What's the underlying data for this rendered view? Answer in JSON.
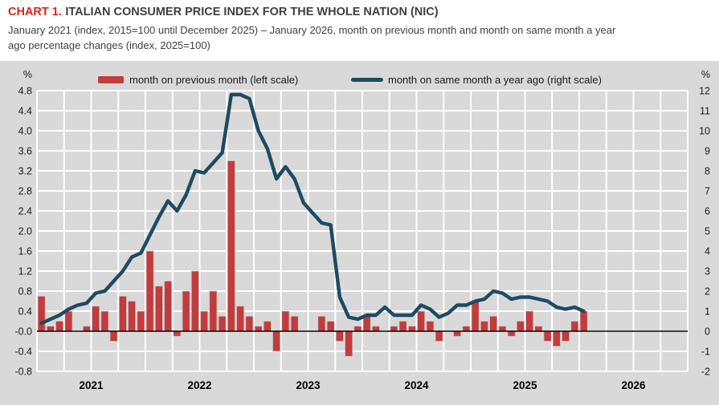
{
  "header": {
    "label": "CHART 1.",
    "title": "ITALIAN CONSUMER PRICE INDEX FOR THE WHOLE NATION (NIC)",
    "subtitle": "January 2021 (index, 2015=100 until December 2025) – January 2026, month on previous month and month on same month a year ago percentage changes (index, 2025=100)"
  },
  "colors": {
    "bar_red": "#c23b3d",
    "bar_stroke": "#c6c6c6",
    "line_navy": "#1d4a63",
    "panel_gray": "#d9d9d9",
    "grid_white": "#ffffff",
    "zero_line": "#000000",
    "tick_text": "#1c1c1c",
    "title_red": "#d9251c",
    "title_gray": "#3f3f3f"
  },
  "chart_data": {
    "type": "bar+line",
    "title": "Italian consumer price index for the whole nation (NIC)",
    "x_start": "2021-01",
    "x_end": "2026-01",
    "n_points": 61,
    "x_axis_year_labels": [
      "2021",
      "2022",
      "2023",
      "2024",
      "2025",
      "2026"
    ],
    "x_domain_months": 72,
    "grid": {
      "vertical": "quarterly",
      "horizontal_step_left": 0.4,
      "gridlines": "on"
    },
    "left_axis": {
      "unit": "%",
      "min": -0.8,
      "max": 4.8,
      "step": 0.4
    },
    "right_axis": {
      "unit": "%",
      "min": -2,
      "max": 12,
      "step": 1
    },
    "legend_position": "top",
    "series": [
      {
        "name": "month on previous month (left scale)",
        "type": "bar",
        "axis": "left",
        "color": "#c23b3d",
        "values": [
          0.7,
          0.1,
          0.2,
          0.4,
          0.0,
          0.1,
          0.5,
          0.4,
          -0.2,
          0.7,
          0.6,
          0.4,
          1.6,
          0.9,
          1.0,
          -0.1,
          0.8,
          1.2,
          0.4,
          0.8,
          0.3,
          3.4,
          0.5,
          0.3,
          0.1,
          0.2,
          -0.4,
          0.4,
          0.3,
          0.0,
          0.0,
          0.3,
          0.2,
          -0.2,
          -0.5,
          0.1,
          0.3,
          0.1,
          0.0,
          0.1,
          0.2,
          0.1,
          0.4,
          0.2,
          -0.2,
          0.0,
          -0.1,
          0.1,
          0.6,
          0.2,
          0.3,
          0.1,
          -0.1,
          0.2,
          0.4,
          0.1,
          -0.2,
          -0.3,
          -0.2,
          0.2,
          0.4
        ]
      },
      {
        "name": "month on same month a year ago (right scale)",
        "type": "line",
        "axis": "right",
        "color": "#1d4a63",
        "values": [
          0.4,
          0.6,
          0.8,
          1.1,
          1.3,
          1.4,
          1.9,
          2.0,
          2.5,
          3.0,
          3.7,
          3.9,
          4.8,
          5.7,
          6.5,
          6.0,
          6.8,
          8.0,
          7.9,
          8.4,
          8.9,
          11.8,
          11.8,
          11.6,
          10.0,
          9.1,
          7.6,
          8.2,
          7.6,
          6.4,
          5.9,
          5.4,
          5.3,
          1.7,
          0.7,
          0.6,
          0.8,
          0.8,
          1.2,
          0.8,
          0.8,
          0.8,
          1.3,
          1.1,
          0.7,
          0.9,
          1.3,
          1.3,
          1.5,
          1.6,
          2.0,
          1.9,
          1.6,
          1.7,
          1.7,
          1.6,
          1.5,
          1.2,
          1.1,
          1.2,
          1.0
        ]
      }
    ]
  }
}
